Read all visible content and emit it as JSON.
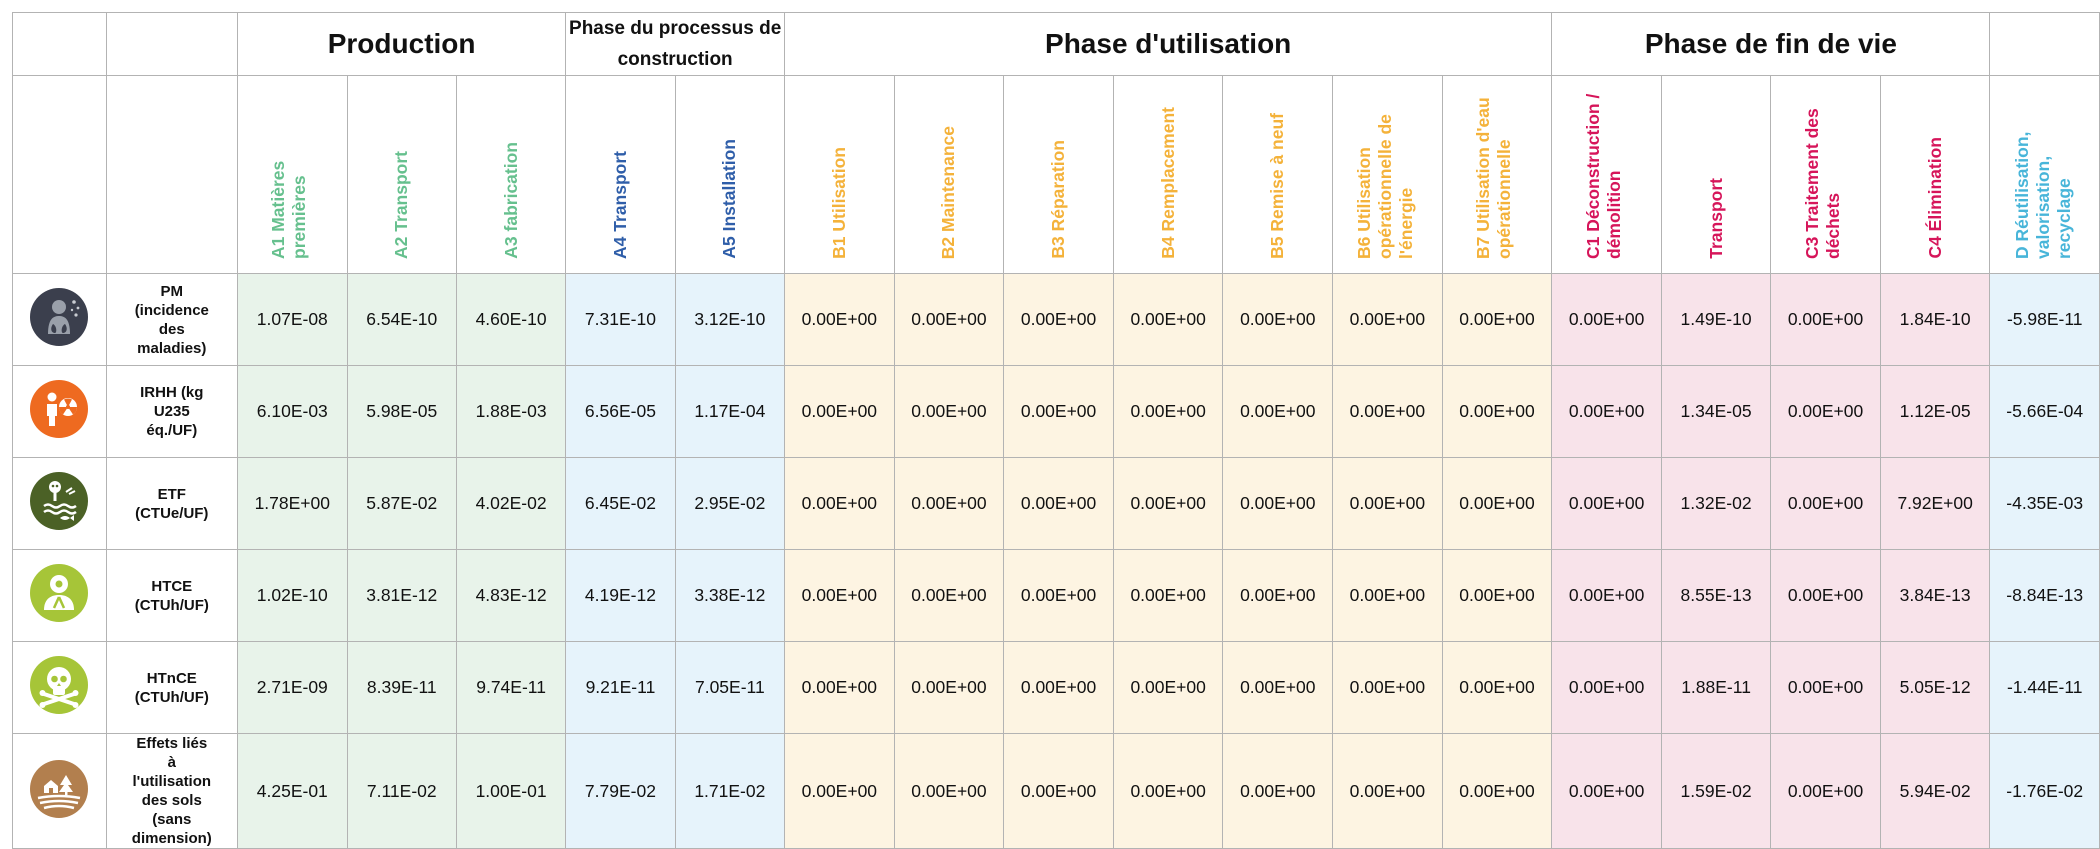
{
  "phases": {
    "production": "Production",
    "construction": "Phase du processus de construction",
    "use": "Phase d'utilisation",
    "end_of_life": "Phase de fin de vie"
  },
  "columns": {
    "A1": "A1 Matières premières",
    "A2": "A2 Transport",
    "A3": "A3 fabrication",
    "A4": "A4 Transport",
    "A5": "A5 Installation",
    "B1": "B1 Utilisation",
    "B2": "B2 Maintenance",
    "B3": "B3 Réparation",
    "B4": "B4 Remplacement",
    "B5": "B5 Remise à neuf",
    "B6": "B6 Utilisation opérationnelle de l'énergie",
    "B7": "B7 Utilisation d'eau opérationnelle",
    "C1": "C1 Déconstruction / démolition",
    "C2": "Transport",
    "C3": "C3 Traitement des déchets",
    "C4": "C4 Élimination",
    "D": "D Réutilisation, valorisation, recyclage"
  },
  "colors": {
    "production": "#66c08e",
    "construction": "#2f5ea9",
    "use": "#f4b23a",
    "end_of_life": "#d6155a",
    "d": "#48b5d9"
  },
  "rows": [
    {
      "icon": "particulate-matter-lungs-icon",
      "indicator": "PM (incidence des maladies)",
      "values": [
        "1.07E-08",
        "6.54E-10",
        "4.60E-10",
        "7.31E-10",
        "3.12E-10",
        "0.00E+00",
        "0.00E+00",
        "0.00E+00",
        "0.00E+00",
        "0.00E+00",
        "0.00E+00",
        "0.00E+00",
        "0.00E+00",
        "1.49E-10",
        "0.00E+00",
        "1.84E-10",
        "-5.98E-11"
      ]
    },
    {
      "icon": "ionizing-radiation-icon",
      "indicator": "IRHH (kg U235 éq./UF)",
      "values": [
        "6.10E-03",
        "5.98E-05",
        "1.88E-03",
        "6.56E-05",
        "1.17E-04",
        "0.00E+00",
        "0.00E+00",
        "0.00E+00",
        "0.00E+00",
        "0.00E+00",
        "0.00E+00",
        "0.00E+00",
        "0.00E+00",
        "1.34E-05",
        "0.00E+00",
        "1.12E-05",
        "-5.66E-04"
      ]
    },
    {
      "icon": "ecotoxicity-freshwater-icon",
      "indicator": "ETF (CTUe/UF)",
      "values": [
        "1.78E+00",
        "5.87E-02",
        "4.02E-02",
        "6.45E-02",
        "2.95E-02",
        "0.00E+00",
        "0.00E+00",
        "0.00E+00",
        "0.00E+00",
        "0.00E+00",
        "0.00E+00",
        "0.00E+00",
        "0.00E+00",
        "1.32E-02",
        "0.00E+00",
        "7.92E+00",
        "-4.35E-03"
      ]
    },
    {
      "icon": "human-toxicity-cancer-icon",
      "indicator": "HTCE (CTUh/UF)",
      "values": [
        "1.02E-10",
        "3.81E-12",
        "4.83E-12",
        "4.19E-12",
        "3.38E-12",
        "0.00E+00",
        "0.00E+00",
        "0.00E+00",
        "0.00E+00",
        "0.00E+00",
        "0.00E+00",
        "0.00E+00",
        "0.00E+00",
        "8.55E-13",
        "0.00E+00",
        "3.84E-13",
        "-8.84E-13"
      ]
    },
    {
      "icon": "skull-crossbones-icon",
      "indicator": "HTnCE (CTUh/UF)",
      "values": [
        "2.71E-09",
        "8.39E-11",
        "9.74E-11",
        "9.21E-11",
        "7.05E-11",
        "0.00E+00",
        "0.00E+00",
        "0.00E+00",
        "0.00E+00",
        "0.00E+00",
        "0.00E+00",
        "0.00E+00",
        "0.00E+00",
        "1.88E-11",
        "0.00E+00",
        "5.05E-12",
        "-1.44E-11"
      ]
    },
    {
      "icon": "land-use-icon",
      "indicator": "Effets liés à l'utilisation des sols (sans dimension)",
      "values": [
        "4.25E-01",
        "7.11E-02",
        "1.00E-01",
        "7.79E-02",
        "1.71E-02",
        "0.00E+00",
        "0.00E+00",
        "0.00E+00",
        "0.00E+00",
        "0.00E+00",
        "0.00E+00",
        "0.00E+00",
        "0.00E+00",
        "1.59E-02",
        "0.00E+00",
        "5.94E-02",
        "-1.76E-02"
      ]
    }
  ]
}
